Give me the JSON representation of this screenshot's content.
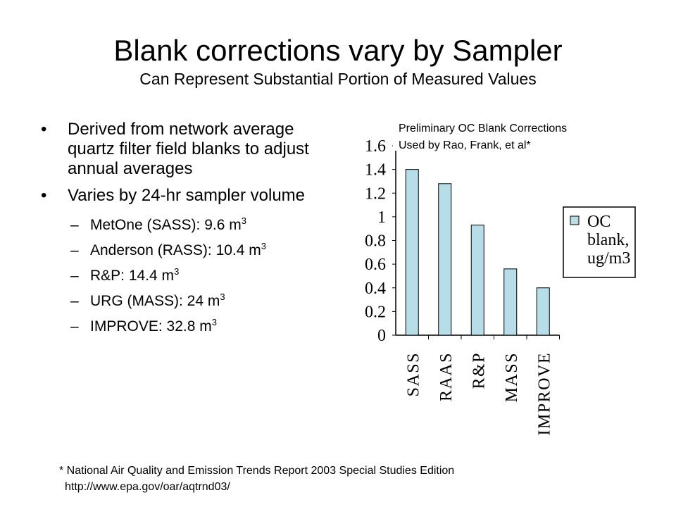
{
  "slide": {
    "title": "Blank corrections vary by Sampler",
    "subtitle": "Can Represent Substantial Portion of Measured Values"
  },
  "bullets": [
    {
      "text": "Derived from network average quartz filter field blanks to adjust annual averages",
      "subs": []
    },
    {
      "text": "Varies by 24-hr sampler volume",
      "subs": [
        {
          "text": "MetOne (SASS): 9.6 m",
          "sup": "3"
        },
        {
          "text": "Anderson (RASS): 10.4 m",
          "sup": "3"
        },
        {
          "text": "R&P: 14.4 m",
          "sup": "3"
        },
        {
          "text": "URG (MASS): 24 m",
          "sup": "3"
        },
        {
          "text": "IMPROVE: 32.8 m",
          "sup": "3"
        }
      ]
    }
  ],
  "footnote": {
    "line1": "* National Air Quality and Emission Trends Report 2003 Special Studies Edition",
    "line2": "http://www.epa.gov/oar/aqtrnd03/"
  },
  "chart_data": {
    "type": "bar",
    "title_lines": [
      "Preliminary OC Blank Corrections",
      "Used by Rao, Frank, et al*"
    ],
    "categories": [
      "SASS",
      "RAAS",
      "R&P",
      "MASS",
      "IMPROVE"
    ],
    "series": [
      {
        "name": "OC blank, ug/m3",
        "values": [
          1.4,
          1.28,
          0.93,
          0.56,
          0.4
        ]
      }
    ],
    "legend_lines": [
      "OC",
      "blank,",
      "ug/m3"
    ],
    "ylim": [
      0,
      1.6
    ],
    "yticks": [
      0,
      0.2,
      0.4,
      0.6,
      0.8,
      1,
      1.2,
      1.4,
      1.6
    ],
    "ytick_labels": [
      "0",
      "0.2",
      "0.4",
      "0.6",
      "0.8",
      "1",
      "1.2",
      "1.4",
      "1.6"
    ],
    "grid": false,
    "legend_position": "right",
    "colors": {
      "bar_fill": "#b7dde8",
      "bar_stroke": "#000000"
    }
  }
}
